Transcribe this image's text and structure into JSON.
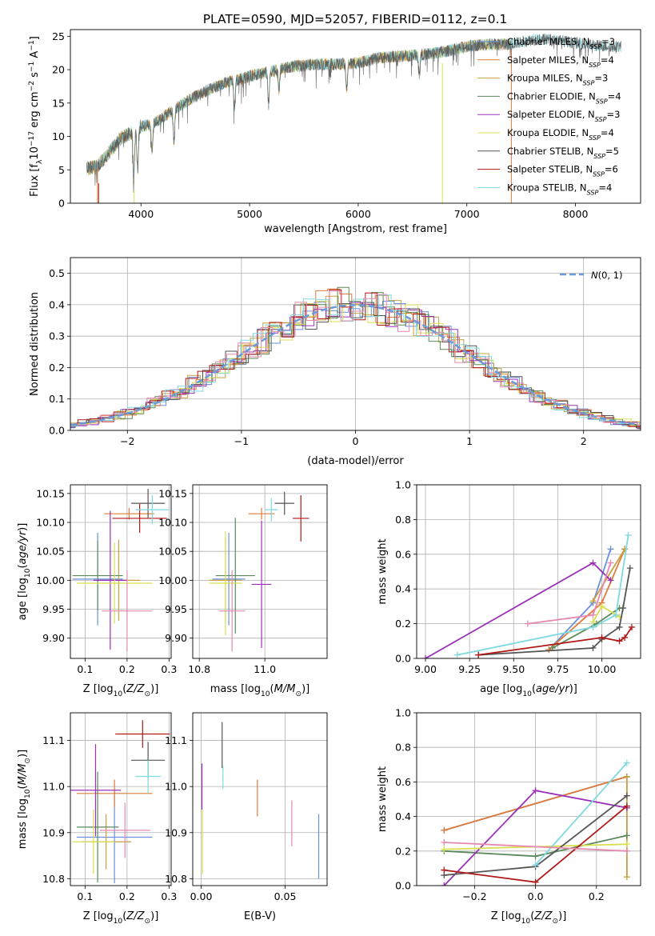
{
  "figure": {
    "title": "PLATE=0590, MJD=52057, FIBERID=0112, z=0.1"
  },
  "colors": {
    "Chabrier MILES": "#6b8fdc",
    "Salpeter MILES": "#e07b39",
    "Kroupa MILES": "#c8a040",
    "Chabrier ELODIE": "#5a8a5a",
    "Salpeter ELODIE": "#9b30b8",
    "Kroupa ELODIE": "#d8e050",
    "Chabrier STELIB": "#555555",
    "Salpeter STELIB": "#b01818",
    "Kroupa STELIB": "#80d8e0",
    "pink": "#e888b0",
    "normal": "#6b9bd8"
  },
  "legend_spec": [
    {
      "label": "Chabrier MILES, N",
      "sub": "SSP",
      "rest": "=3",
      "color_key": "Chabrier MILES"
    },
    {
      "label": "Salpeter MILES, N",
      "sub": "SSP",
      "rest": "=4",
      "color_key": "Salpeter MILES"
    },
    {
      "label": "Kroupa MILES, N",
      "sub": "SSP",
      "rest": "=3",
      "color_key": "Kroupa MILES"
    },
    {
      "label": "Chabrier ELODIE, N",
      "sub": "SSP",
      "rest": "=4",
      "color_key": "Chabrier ELODIE"
    },
    {
      "label": "Salpeter ELODIE, N",
      "sub": "SSP",
      "rest": "=3",
      "color_key": "Salpeter ELODIE"
    },
    {
      "label": "Kroupa ELODIE, N",
      "sub": "SSP",
      "rest": "=4",
      "color_key": "Kroupa ELODIE"
    },
    {
      "label": "Chabrier STELIB, N",
      "sub": "SSP",
      "rest": "=5",
      "color_key": "Chabrier STELIB"
    },
    {
      "label": "Salpeter STELIB, N",
      "sub": "SSP",
      "rest": "=6",
      "color_key": "Salpeter STELIB"
    },
    {
      "label": "Kroupa STELIB, N",
      "sub": "SSP",
      "rest": "=4",
      "color_key": "Kroupa STELIB"
    }
  ],
  "chart_data": [
    {
      "id": "spectrum",
      "type": "line",
      "xlabel": "wavelength [Angstrom, rest frame]",
      "ylabel": "Flux [f_λ 10^-17 erg cm^-2 s^-1 A^-1]",
      "xlim": [
        3350,
        8600
      ],
      "ylim": [
        0,
        26
      ],
      "xticks": [
        4000,
        5000,
        6000,
        7000,
        8000
      ],
      "yticks": [
        0,
        5,
        10,
        15,
        20,
        25
      ],
      "grid": false,
      "legend_position": "right",
      "continuum": {
        "x": [
          3500,
          3600,
          3700,
          3800,
          3900,
          4000,
          4100,
          4200,
          4300,
          4400,
          4500,
          4600,
          4700,
          4800,
          4900,
          5000,
          5200,
          5400,
          5600,
          5800,
          6000,
          6200,
          6400,
          6600,
          6800,
          7000,
          7200,
          7400,
          7600,
          7800,
          8000,
          8200,
          8400
        ],
        "y": [
          5.2,
          5.5,
          7.5,
          9.5,
          10.5,
          11.5,
          11.8,
          12.8,
          14,
          15,
          16,
          16.8,
          17.5,
          18.2,
          18.5,
          19,
          19.8,
          20.5,
          20.8,
          20.8,
          21,
          21.8,
          22,
          22.3,
          22.7,
          23.5,
          23.8,
          23.8,
          24.5,
          24.5,
          24,
          23.6,
          23.5
        ]
      },
      "absorption_features": [
        {
          "x": 3934,
          "depth": 7
        },
        {
          "x": 3969,
          "depth": 6
        },
        {
          "x": 4102,
          "depth": 4
        },
        {
          "x": 4304,
          "depth": 5
        },
        {
          "x": 4861,
          "depth": 4
        },
        {
          "x": 5175,
          "depth": 5
        },
        {
          "x": 5270,
          "depth": 3
        },
        {
          "x": 5893,
          "depth": 4
        },
        {
          "x": 6563,
          "depth": 3
        }
      ],
      "spikes": [
        {
          "x": 3600,
          "ymin": 0,
          "ymax": 5,
          "color_key": "Salpeter MILES"
        },
        {
          "x": 3610,
          "ymin": 0,
          "ymax": 3,
          "color_key": "Salpeter STELIB"
        },
        {
          "x": 3937,
          "ymin": 0,
          "ymax": 2,
          "color_key": "Kroupa ELODIE"
        },
        {
          "x": 6775,
          "ymin": 0,
          "ymax": 21,
          "color_key": "Kroupa ELODIE"
        },
        {
          "x": 7410,
          "ymin": 0,
          "ymax": 23,
          "color_key": "Salpeter MILES"
        }
      ]
    },
    {
      "id": "residual_hist",
      "type": "histogram",
      "xlabel": "(data-model)/error",
      "ylabel": "Normed distribution",
      "xlim": [
        -2.5,
        2.5
      ],
      "ylim": [
        0,
        0.55
      ],
      "xticks": [
        -2,
        -1,
        0,
        1,
        2
      ],
      "yticks": [
        0.0,
        0.1,
        0.2,
        0.3,
        0.4,
        0.5
      ],
      "grid": true,
      "legend_position": "top-right",
      "reference_curve": {
        "name": "N(0,1)",
        "mean": 0,
        "sigma": 1
      }
    },
    {
      "id": "age_vs_Z",
      "type": "scatter",
      "xlabel": "Z [log10(Z/Z☉)]",
      "ylabel": "age [log10(age/yr)]",
      "xlim": [
        0.065,
        0.305
      ],
      "ylim": [
        9.865,
        10.165
      ],
      "xticks": [
        0.1,
        0.2,
        0.3
      ],
      "yticks": [
        9.9,
        9.95,
        10.0,
        10.05,
        10.1,
        10.15
      ],
      "grid": true,
      "points": [
        {
          "x": 0.13,
          "y": 10.002,
          "xerr": 0.06,
          "yerr": 0.08,
          "color_key": "Chabrier MILES"
        },
        {
          "x": 0.205,
          "y": 10.115,
          "xerr": 0.06,
          "yerr": 0.01,
          "color_key": "Salpeter MILES"
        },
        {
          "x": 0.18,
          "y": 10.0,
          "xerr": 0.05,
          "yerr": 0.07,
          "color_key": "Kroupa MILES"
        },
        {
          "x": 0.13,
          "y": 10.008,
          "xerr": 0.06,
          "yerr": 0.06,
          "color_key": "Chabrier ELODIE"
        },
        {
          "x": 0.16,
          "y": 10.0,
          "xerr": 0.04,
          "yerr": 0.12,
          "color_key": "Salpeter ELODIE"
        },
        {
          "x": 0.17,
          "y": 9.995,
          "xerr": 0.09,
          "yerr": 0.07,
          "color_key": "Kroupa ELODIE"
        },
        {
          "x": 0.25,
          "y": 10.133,
          "xerr": 0.04,
          "yerr": 0.025,
          "color_key": "Chabrier STELIB"
        },
        {
          "x": 0.23,
          "y": 10.107,
          "xerr": 0.065,
          "yerr": 0.025,
          "color_key": "Salpeter STELIB"
        },
        {
          "x": 0.26,
          "y": 10.122,
          "xerr": 0.04,
          "yerr": 0.025,
          "color_key": "Kroupa STELIB"
        },
        {
          "x": 0.2,
          "y": 9.947,
          "xerr": 0.06,
          "yerr": 0.07,
          "color_key": "pink"
        }
      ]
    },
    {
      "id": "age_vs_mass",
      "type": "scatter",
      "xlabel": "mass [log10(M/M☉)]",
      "ylabel": "",
      "xlim": [
        10.78,
        11.19
      ],
      "ylim": [
        9.865,
        10.165
      ],
      "xticks": [
        10.8,
        11.0
      ],
      "yticks": [
        9.9,
        9.95,
        10.0,
        10.05,
        10.1,
        10.15
      ],
      "grid": true,
      "points": [
        {
          "x": 10.89,
          "y": 10.002,
          "xerr": 0.05,
          "yerr": 0.08,
          "color_key": "Chabrier MILES"
        },
        {
          "x": 10.99,
          "y": 10.115,
          "xerr": 0.04,
          "yerr": 0.01,
          "color_key": "Salpeter MILES"
        },
        {
          "x": 10.88,
          "y": 10.0,
          "xerr": 0.05,
          "yerr": 0.07,
          "color_key": "Kroupa MILES"
        },
        {
          "x": 10.91,
          "y": 10.008,
          "xerr": 0.06,
          "yerr": 0.1,
          "color_key": "Chabrier ELODIE"
        },
        {
          "x": 10.99,
          "y": 9.993,
          "xerr": 0.03,
          "yerr": 0.11,
          "color_key": "Salpeter ELODIE"
        },
        {
          "x": 10.88,
          "y": 9.995,
          "xerr": 0.05,
          "yerr": 0.09,
          "color_key": "Kroupa ELODIE"
        },
        {
          "x": 11.06,
          "y": 10.133,
          "xerr": 0.03,
          "yerr": 0.02,
          "color_key": "Chabrier STELIB"
        },
        {
          "x": 11.11,
          "y": 10.107,
          "xerr": 0.025,
          "yerr": 0.04,
          "color_key": "Salpeter STELIB"
        },
        {
          "x": 11.02,
          "y": 10.122,
          "xerr": 0.02,
          "yerr": 0.02,
          "color_key": "Kroupa STELIB"
        },
        {
          "x": 10.9,
          "y": 9.947,
          "xerr": 0.04,
          "yerr": 0.07,
          "color_key": "pink"
        }
      ]
    },
    {
      "id": "weight_vs_age",
      "type": "line",
      "xlabel": "age [log10(age/yr)]",
      "ylabel": "mass weight",
      "xlim": [
        8.95,
        10.22
      ],
      "ylim": [
        0,
        1
      ],
      "xticks": [
        9.0,
        9.25,
        9.5,
        9.75,
        10.0
      ],
      "yticks": [
        0.0,
        0.2,
        0.4,
        0.6,
        0.8,
        1.0
      ],
      "grid": true,
      "series": [
        {
          "color_key": "Chabrier MILES",
          "x": [
            9.7,
            9.95,
            10.05
          ],
          "y": [
            0.05,
            0.32,
            0.63
          ]
        },
        {
          "color_key": "Salpeter MILES",
          "x": [
            9.7,
            10.0,
            10.13
          ],
          "y": [
            0.05,
            0.32,
            0.63
          ]
        },
        {
          "color_key": "Kroupa MILES",
          "x": [
            9.95,
            10.13
          ],
          "y": [
            0.33,
            0.63
          ]
        },
        {
          "color_key": "Chabrier ELODIE",
          "x": [
            9.72,
            9.97,
            10.1
          ],
          "y": [
            0.06,
            0.2,
            0.29
          ]
        },
        {
          "color_key": "Salpeter ELODIE",
          "x": [
            9.0,
            9.95,
            10.05
          ],
          "y": [
            0.0,
            0.55,
            0.45
          ]
        },
        {
          "color_key": "Kroupa ELODIE",
          "x": [
            9.95,
            10.0,
            10.1
          ],
          "y": [
            0.21,
            0.3,
            0.24
          ]
        },
        {
          "color_key": "Chabrier STELIB",
          "x": [
            9.3,
            9.95,
            10.0,
            10.1,
            10.12,
            10.16
          ],
          "y": [
            0.02,
            0.06,
            0.11,
            0.18,
            0.29,
            0.52
          ]
        },
        {
          "color_key": "Salpeter STELIB",
          "x": [
            9.3,
            10.0,
            10.1,
            10.13,
            10.17
          ],
          "y": [
            0.02,
            0.12,
            0.1,
            0.12,
            0.18
          ]
        },
        {
          "color_key": "Kroupa STELIB",
          "x": [
            9.18,
            9.95,
            10.08,
            10.15
          ],
          "y": [
            0.02,
            0.18,
            0.25,
            0.71
          ]
        },
        {
          "color_key": "pink",
          "x": [
            9.58,
            9.95,
            10.05
          ],
          "y": [
            0.2,
            0.25,
            0.55
          ]
        }
      ]
    },
    {
      "id": "mass_vs_Z",
      "type": "scatter",
      "xlabel": "Z [log10(Z/Z☉)]",
      "ylabel": "mass [log10(M/M☉)]",
      "xlim": [
        0.065,
        0.305
      ],
      "ylim": [
        10.785,
        11.16
      ],
      "xticks": [
        0.1,
        0.2,
        0.3
      ],
      "yticks": [
        10.8,
        10.9,
        11.0,
        11.1
      ],
      "grid": true,
      "points": [
        {
          "x": 0.17,
          "y": 10.89,
          "xerr": 0.09,
          "yerr": 0.1,
          "color_key": "Chabrier MILES"
        },
        {
          "x": 0.17,
          "y": 10.985,
          "xerr": 0.09,
          "yerr": 0.03,
          "color_key": "Salpeter MILES"
        },
        {
          "x": 0.15,
          "y": 10.88,
          "xerr": 0.06,
          "yerr": 0.06,
          "color_key": "Kroupa MILES"
        },
        {
          "x": 0.13,
          "y": 10.912,
          "xerr": 0.05,
          "yerr": 0.12,
          "color_key": "Chabrier ELODIE"
        },
        {
          "x": 0.125,
          "y": 10.992,
          "xerr": 0.06,
          "yerr": 0.1,
          "color_key": "Salpeter ELODIE"
        },
        {
          "x": 0.12,
          "y": 10.88,
          "xerr": 0.05,
          "yerr": 0.07,
          "color_key": "Kroupa ELODIE"
        },
        {
          "x": 0.25,
          "y": 11.057,
          "xerr": 0.04,
          "yerr": 0.04,
          "color_key": "Chabrier STELIB"
        },
        {
          "x": 0.237,
          "y": 11.114,
          "xerr": 0.065,
          "yerr": 0.03,
          "color_key": "Salpeter STELIB"
        },
        {
          "x": 0.25,
          "y": 11.022,
          "xerr": 0.03,
          "yerr": 0.035,
          "color_key": "Kroupa STELIB"
        },
        {
          "x": 0.195,
          "y": 10.905,
          "xerr": 0.06,
          "yerr": 0.06,
          "color_key": "pink"
        }
      ]
    },
    {
      "id": "mass_vs_ebv",
      "type": "scatter",
      "xlabel": "E(B-V)",
      "ylabel": "",
      "xlim": [
        -0.005,
        0.075
      ],
      "ylim": [
        10.785,
        11.16
      ],
      "xticks": [
        0.0,
        0.05
      ],
      "yticks": [
        10.8,
        10.9,
        11.0,
        11.1
      ],
      "grid": true,
      "points": [
        {
          "x": 0.0005,
          "y": 11.0,
          "xerr": 0,
          "yerr": 0.05,
          "color_key": "Salpeter ELODIE"
        },
        {
          "x": 0.0008,
          "y": 10.88,
          "xerr": 0,
          "yerr": 0.07,
          "color_key": "Kroupa ELODIE"
        },
        {
          "x": 0.0125,
          "y": 11.09,
          "xerr": 0,
          "yerr": 0.05,
          "color_key": "Chabrier STELIB"
        },
        {
          "x": 0.013,
          "y": 11.02,
          "xerr": 0,
          "yerr": 0.025,
          "color_key": "Kroupa STELIB"
        },
        {
          "x": 0.0335,
          "y": 10.975,
          "xerr": 0,
          "yerr": 0.04,
          "color_key": "Salpeter MILES"
        },
        {
          "x": 0.054,
          "y": 10.92,
          "xerr": 0,
          "yerr": 0.05,
          "color_key": "pink"
        },
        {
          "x": 0.07,
          "y": 10.87,
          "xerr": 0,
          "yerr": 0.07,
          "color_key": "Chabrier MILES"
        }
      ]
    },
    {
      "id": "weight_vs_Z",
      "type": "line",
      "xlabel": "Z [log10(Z/Z☉)]",
      "ylabel": "mass weight",
      "xlim": [
        -0.39,
        0.345
      ],
      "ylim": [
        0,
        1
      ],
      "xticks": [
        -0.2,
        0.0,
        0.2
      ],
      "yticks": [
        0.0,
        0.2,
        0.4,
        0.6,
        0.8,
        1.0
      ],
      "grid": true,
      "series": [
        {
          "color_key": "Chabrier MILES",
          "x": [
            -0.3,
            0.3
          ],
          "y": [
            0.32,
            0.63
          ]
        },
        {
          "color_key": "Salpeter MILES",
          "x": [
            -0.3,
            0.3
          ],
          "y": [
            0.32,
            0.63
          ]
        },
        {
          "color_key": "Kroupa MILES",
          "x": [
            0.3,
            0.3
          ],
          "y": [
            0.05,
            0.63
          ]
        },
        {
          "color_key": "Chabrier ELODIE",
          "x": [
            -0.3,
            0.0,
            0.3
          ],
          "y": [
            0.2,
            0.17,
            0.29
          ]
        },
        {
          "color_key": "Salpeter ELODIE",
          "x": [
            -0.3,
            0.0,
            0.3
          ],
          "y": [
            0.0,
            0.55,
            0.45
          ]
        },
        {
          "color_key": "Kroupa ELODIE",
          "x": [
            -0.3,
            0.3
          ],
          "y": [
            0.21,
            0.24
          ]
        },
        {
          "color_key": "Chabrier STELIB",
          "x": [
            -0.3,
            0.0,
            0.3
          ],
          "y": [
            0.06,
            0.11,
            0.52
          ]
        },
        {
          "color_key": "Salpeter STELIB",
          "x": [
            -0.3,
            0.0,
            0.3
          ],
          "y": [
            0.09,
            0.02,
            0.46
          ]
        },
        {
          "color_key": "Kroupa STELIB",
          "x": [
            0.0,
            0.3
          ],
          "y": [
            0.12,
            0.71
          ]
        },
        {
          "color_key": "pink",
          "x": [
            -0.3,
            0.3
          ],
          "y": [
            0.25,
            0.2
          ]
        }
      ]
    }
  ]
}
